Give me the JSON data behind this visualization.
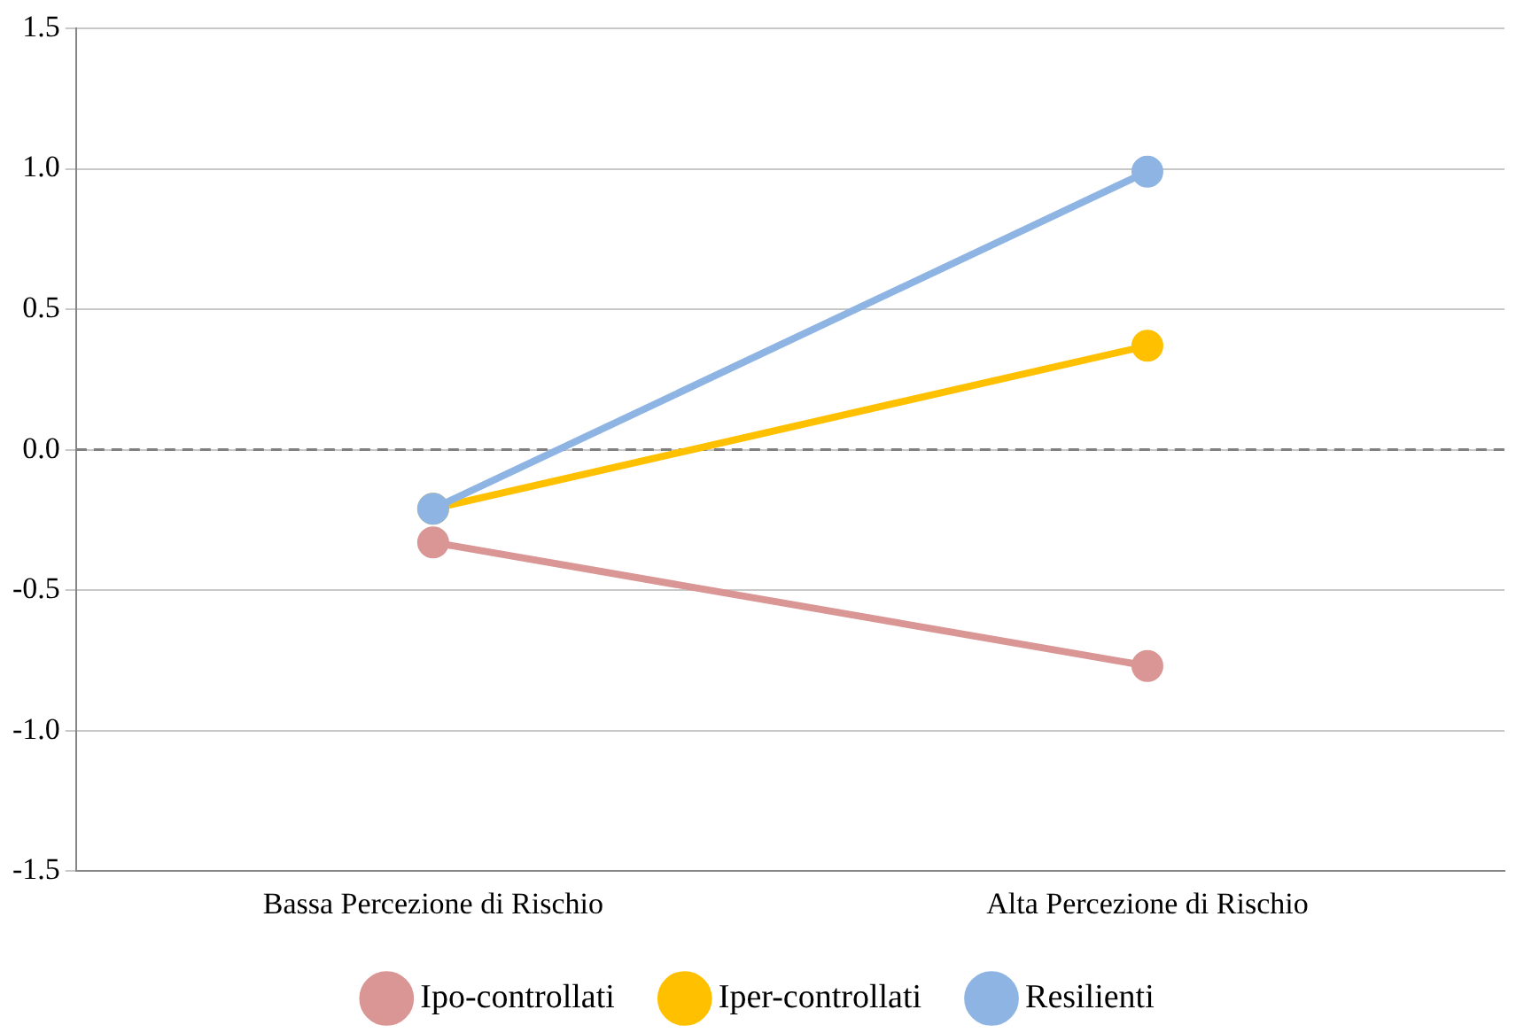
{
  "chart_data": {
    "type": "line",
    "categories": [
      "Bassa Percezione di Rischio",
      "Alta Percezione di Rischio"
    ],
    "series": [
      {
        "name": "Ipo-controllati",
        "color": "#d99694",
        "values": [
          -0.33,
          -0.77
        ]
      },
      {
        "name": "Iper-controllati",
        "color": "#ffc000",
        "values": [
          -0.21,
          0.37
        ]
      },
      {
        "name": "Resilienti",
        "color": "#8eb4e3",
        "values": [
          -0.21,
          0.99
        ]
      }
    ],
    "ylim": [
      -1.5,
      1.5
    ],
    "yticks": [
      {
        "value": -1.5,
        "label": "-1.5"
      },
      {
        "value": -1,
        "label": "-1.0"
      },
      {
        "value": -0.5,
        "label": "-0.5"
      },
      {
        "value": 0,
        "label": "0.0"
      },
      {
        "value": 0.5,
        "label": "0.5"
      },
      {
        "value": 1,
        "label": "1.0"
      },
      {
        "value": 1.5,
        "label": "1.5"
      }
    ],
    "grid": "y",
    "legend": "bottom",
    "marker": "circle",
    "line_style": "solid",
    "ref_lines": [
      {
        "axis": "y",
        "value": 0,
        "color": "#808080",
        "line_style": "dashed"
      }
    ]
  }
}
